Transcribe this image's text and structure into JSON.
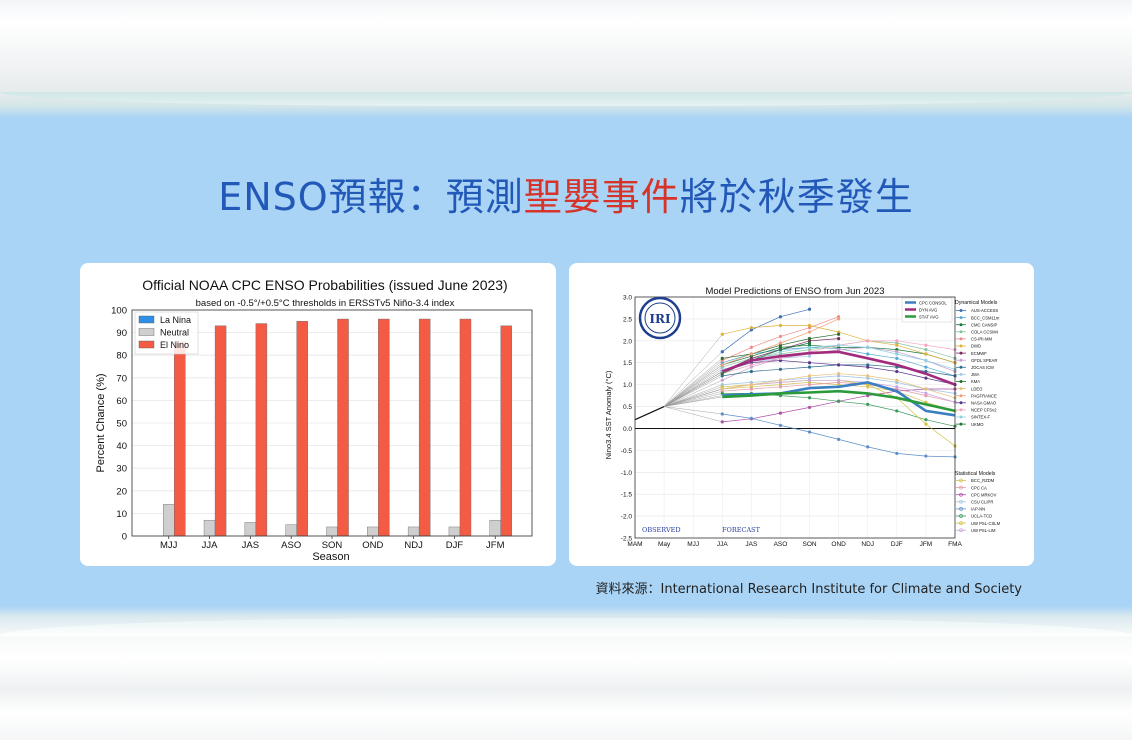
{
  "page": {
    "title_before": "ENSO預報：預測",
    "title_highlight": "聖嬰事件",
    "title_after": "將於秋季發生",
    "source": "資料來源：International Research Institute for Climate and Society",
    "colors": {
      "title_blue": "#2258b8",
      "title_red": "#d6342a",
      "background": "#aad4f5"
    }
  },
  "chart_data": [
    {
      "type": "bar",
      "title": "Official NOAA CPC ENSO Probabilities (issued June 2023)",
      "subtitle": "based on -0.5°/+0.5°C thresholds in ERSSTv5 Niño-3.4 index",
      "xlabel": "Season",
      "ylabel": "Percent Chance (%)",
      "ylim": [
        0,
        100
      ],
      "yticks": [
        0,
        10,
        20,
        30,
        40,
        50,
        60,
        70,
        80,
        90,
        100
      ],
      "categories": [
        "MJJ",
        "JJA",
        "JAS",
        "ASO",
        "SON",
        "OND",
        "NDJ",
        "DJF",
        "JFM"
      ],
      "legend_position": "top-left",
      "series": [
        {
          "name": "La Nina",
          "color": "#2f8fe8",
          "values": [
            0,
            0,
            0,
            0,
            0,
            0,
            0,
            0,
            0
          ]
        },
        {
          "name": "Neutral",
          "color": "#cfcfcf",
          "values": [
            14,
            7,
            6,
            5,
            4,
            4,
            4,
            4,
            7
          ]
        },
        {
          "name": "El Nino",
          "color": "#f45b45",
          "values": [
            86,
            93,
            94,
            95,
            96,
            96,
            96,
            96,
            93
          ]
        }
      ]
    },
    {
      "type": "line",
      "title": "Model Predictions of ENSO from Jun 2023",
      "ylabel": "Nino3.4 SST Anomaly (°C)",
      "ylim": [
        -2.5,
        3.0
      ],
      "yticks": [
        "-2.5",
        "-2.0",
        "-1.5",
        "-1.0",
        "-0.5",
        "0.0",
        "0.5",
        "1.0",
        "1.5",
        "2.0",
        "2.5",
        "3.0"
      ],
      "x": [
        "MAM",
        "May",
        "MJJ",
        "JJA",
        "JAS",
        "ASO",
        "SON",
        "OND",
        "NDJ",
        "DJF",
        "JFM",
        "FMA"
      ],
      "observed": {
        "x": [
          "MAM",
          "May"
        ],
        "values": [
          0.2,
          0.5
        ]
      },
      "logo": "IRI",
      "region_labels": {
        "observed": "OBSERVED",
        "forecast": "FORECAST"
      },
      "legend_groups": {
        "dynamical": "Dynamical Models",
        "statistical": "Statistical Models"
      },
      "averages": [
        {
          "name": "CPC CONSOL",
          "color": "#3a7fc1",
          "values": [
            0.75,
            0.78,
            0.8,
            0.92,
            0.95,
            1.05,
            0.85,
            0.4,
            0.3
          ]
        },
        {
          "name": "DYN AVG",
          "color": "#a32b7e",
          "values": [
            1.3,
            1.55,
            1.65,
            1.72,
            1.75,
            1.6,
            1.45,
            1.25,
            1.0
          ]
        },
        {
          "name": "STAT AVG",
          "color": "#2a9a3a",
          "values": [
            0.72,
            0.75,
            0.8,
            0.82,
            0.85,
            0.8,
            0.7,
            0.55,
            0.4
          ]
        }
      ],
      "dynamical_models": [
        {
          "name": "AUS-ACCESS",
          "color": "#3b6fb5",
          "values": [
            1.75,
            2.25,
            2.55,
            2.72,
            null,
            null,
            null,
            null,
            null
          ]
        },
        {
          "name": "BCC_CSM11m",
          "color": "#55a9d6",
          "values": [
            1.5,
            1.7,
            1.8,
            1.85,
            1.82,
            1.7,
            1.6,
            1.4,
            1.2
          ]
        },
        {
          "name": "CMC CANSIP",
          "color": "#1a7a3a",
          "values": [
            1.45,
            1.65,
            1.85,
            1.9,
            1.85,
            1.85,
            1.8,
            1.7,
            1.5
          ]
        },
        {
          "name": "COLA CCSM4",
          "color": "#86c5a0",
          "values": [
            1.4,
            1.6,
            1.7,
            1.8,
            1.9,
            2.0,
            1.95,
            1.8,
            1.6
          ]
        },
        {
          "name": "CS-IRI-MM",
          "color": "#f08a8a",
          "values": [
            1.55,
            1.85,
            2.1,
            2.3,
            2.55,
            null,
            null,
            null,
            null
          ]
        },
        {
          "name": "DWD",
          "color": "#e0b23a",
          "values": [
            2.15,
            2.3,
            2.35,
            2.35,
            2.2,
            2.0,
            1.9,
            1.7,
            1.5
          ]
        },
        {
          "name": "ECMWF",
          "color": "#7a2b5e",
          "values": [
            1.3,
            1.6,
            1.8,
            2.0,
            2.05,
            null,
            null,
            null,
            null
          ]
        },
        {
          "name": "GFDL SPEAR",
          "color": "#c8a0d0",
          "values": [
            1.1,
            1.4,
            1.6,
            1.7,
            1.8,
            1.85,
            1.75,
            1.55,
            1.3
          ]
        },
        {
          "name": "JOCAS ICM",
          "color": "#2f6e8e",
          "values": [
            1.2,
            1.3,
            1.35,
            1.4,
            1.45,
            1.45,
            1.4,
            1.3,
            1.2
          ]
        },
        {
          "name": "JMA",
          "color": "#a7c7e8",
          "values": [
            1.35,
            1.5,
            1.6,
            1.65,
            null,
            null,
            null,
            null,
            null
          ]
        },
        {
          "name": "KMA",
          "color": "#2e6b2e",
          "values": [
            1.6,
            1.7,
            1.9,
            2.05,
            2.15,
            null,
            null,
            null,
            null
          ]
        },
        {
          "name": "LDEO",
          "color": "#e9c07a",
          "values": [
            0.9,
            1.0,
            1.1,
            1.2,
            1.25,
            1.2,
            1.1,
            0.9,
            0.7
          ]
        },
        {
          "name": "PAGFRANCE",
          "color": "#f2a07a",
          "values": [
            1.45,
            1.7,
            1.95,
            2.2,
            2.5,
            null,
            null,
            null,
            null
          ]
        },
        {
          "name": "NASA GMAO",
          "color": "#5b3a8c",
          "values": [
            1.3,
            1.5,
            1.55,
            1.5,
            1.45,
            1.4,
            1.3,
            1.15,
            1.0
          ]
        },
        {
          "name": "NCEP CFSv2",
          "color": "#f5a3c3",
          "values": [
            1.25,
            1.45,
            1.6,
            1.75,
            1.9,
            2.0,
            2.0,
            1.9,
            1.8
          ]
        },
        {
          "name": "SINTEX-F",
          "color": "#8bd0e3",
          "values": [
            1.3,
            1.55,
            1.75,
            1.85,
            1.9,
            1.85,
            1.7,
            1.55,
            1.35
          ]
        },
        {
          "name": "UKMO",
          "color": "#1f7a3a",
          "values": [
            1.25,
            1.55,
            1.8,
            1.95,
            null,
            null,
            null,
            null,
            null
          ]
        }
      ],
      "statistical_models": [
        {
          "name": "BCC_RZDM",
          "color": "#d4c25a",
          "values": [
            0.9,
            0.95,
            1.0,
            1.05,
            1.0,
            0.95,
            0.85,
            0.6,
            0.4
          ]
        },
        {
          "name": "CPC CA",
          "color": "#e79aa8",
          "values": [
            0.85,
            0.9,
            0.95,
            1.0,
            1.05,
            1.0,
            0.9,
            0.75,
            0.6
          ]
        },
        {
          "name": "CPC MRKOV",
          "color": "#b04fa8",
          "values": [
            0.15,
            0.22,
            0.35,
            0.48,
            0.62,
            0.75,
            0.85,
            0.9,
            0.9
          ]
        },
        {
          "name": "CSU CLIPR",
          "color": "#9fc4e3",
          "values": [
            1.0,
            1.05,
            1.1,
            1.15,
            1.2,
            1.15,
            1.05,
            0.9,
            0.8
          ]
        },
        {
          "name": "IAP-NN",
          "color": "#5b8fc9",
          "values": [
            0.33,
            0.23,
            0.07,
            -0.08,
            -0.25,
            -0.42,
            -0.57,
            -0.63,
            -0.65
          ]
        },
        {
          "name": "UCLA-TCD",
          "color": "#3c9a5a",
          "values": [
            0.8,
            0.8,
            0.75,
            0.7,
            0.62,
            0.55,
            0.4,
            0.2,
            0.05
          ]
        },
        {
          "name": "UW PSL-CSLM",
          "color": "#d0c040",
          "values": [
            0.95,
            1.0,
            1.05,
            1.1,
            1.1,
            1.0,
            0.7,
            0.1,
            -0.4
          ]
        },
        {
          "name": "UW PSL-LIM",
          "color": "#c9a3e0",
          "values": [
            0.9,
            1.0,
            1.05,
            1.1,
            1.1,
            1.05,
            0.95,
            0.8,
            0.6
          ]
        }
      ]
    }
  ]
}
